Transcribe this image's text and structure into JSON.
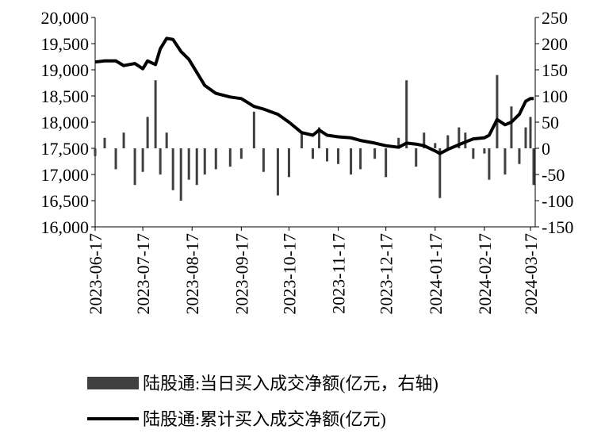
{
  "chart_data": {
    "type": "bar-line",
    "x": [
      "2023-06-17",
      "2023-06-23",
      "2023-06-30",
      "2023-07-05",
      "2023-07-12",
      "2023-07-17",
      "2023-07-20",
      "2023-07-25",
      "2023-07-28",
      "2023-08-01",
      "2023-08-05",
      "2023-08-10",
      "2023-08-15",
      "2023-08-20",
      "2023-08-25",
      "2023-09-01",
      "2023-09-10",
      "2023-09-17",
      "2023-09-25",
      "2023-10-01",
      "2023-10-10",
      "2023-10-17",
      "2023-10-25",
      "2023-11-01",
      "2023-11-05",
      "2023-11-10",
      "2023-11-17",
      "2023-11-25",
      "2023-12-01",
      "2023-12-10",
      "2023-12-17",
      "2023-12-25",
      "2023-12-30",
      "2024-01-05",
      "2024-01-10",
      "2024-01-17",
      "2024-01-20",
      "2024-01-25",
      "2024-02-01",
      "2024-02-05",
      "2024-02-10",
      "2024-02-17",
      "2024-02-20",
      "2024-02-25",
      "2024-03-01",
      "2024-03-05",
      "2024-03-10",
      "2024-03-14",
      "2024-03-17",
      "2024-03-19"
    ],
    "series": [
      {
        "name": "陆股通:当日买入成交净额(亿元，右轴)",
        "color": "#404040",
        "axis": "y2",
        "values": [
          -15,
          20,
          -40,
          30,
          -70,
          -45,
          60,
          130,
          -50,
          30,
          -80,
          -100,
          -60,
          -70,
          -50,
          -40,
          -35,
          -20,
          70,
          -45,
          -90,
          -55,
          30,
          -20,
          40,
          -25,
          -30,
          -50,
          -40,
          -20,
          -55,
          20,
          130,
          -35,
          30,
          10,
          -95,
          25,
          40,
          30,
          -20,
          -10,
          -60,
          140,
          -50,
          80,
          -30,
          40,
          60,
          -70
        ]
      },
      {
        "name": "陆股通:累计买入成交净额(亿元)",
        "color": "#000000",
        "values": [
          19150,
          19170,
          19170,
          19080,
          19120,
          19020,
          19170,
          19100,
          19400,
          19600,
          19580,
          19350,
          19200,
          18950,
          18700,
          18550,
          18480,
          18450,
          18300,
          18250,
          18150,
          18000,
          17800,
          17750,
          17850,
          17750,
          17720,
          17700,
          17650,
          17600,
          17550,
          17520,
          17600,
          17580,
          17550,
          17450,
          17400,
          17480,
          17570,
          17620,
          17680,
          17700,
          17750,
          18050,
          17950,
          18000,
          18150,
          18400,
          18450,
          18450
        ]
      }
    ],
    "xlim": [
      "2023-06-17",
      "2024-03-20"
    ],
    "xticks": [
      "2023-06-17",
      "2023-07-17",
      "2023-08-17",
      "2023-09-17",
      "2023-10-17",
      "2023-11-17",
      "2023-12-17",
      "2024-01-17",
      "2024-02-17",
      "2024-03-17"
    ],
    "ylim": [
      16000,
      20000
    ],
    "yticks": [
      {
        "value": 16000,
        "label": "16,000"
      },
      {
        "value": 16500,
        "label": "16,500"
      },
      {
        "value": 17000,
        "label": "17,000"
      },
      {
        "value": 17500,
        "label": "17,500"
      },
      {
        "value": 18000,
        "label": "18,000"
      },
      {
        "value": 18500,
        "label": "18,500"
      },
      {
        "value": 19000,
        "label": "19,000"
      },
      {
        "value": 19500,
        "label": "19,500"
      },
      {
        "value": 20000,
        "label": "20,000"
      }
    ],
    "y2lim": [
      -150,
      250
    ],
    "y2ticks": [
      -150,
      -100,
      -50,
      0,
      50,
      100,
      150,
      200,
      250
    ],
    "legend": "bottom"
  }
}
